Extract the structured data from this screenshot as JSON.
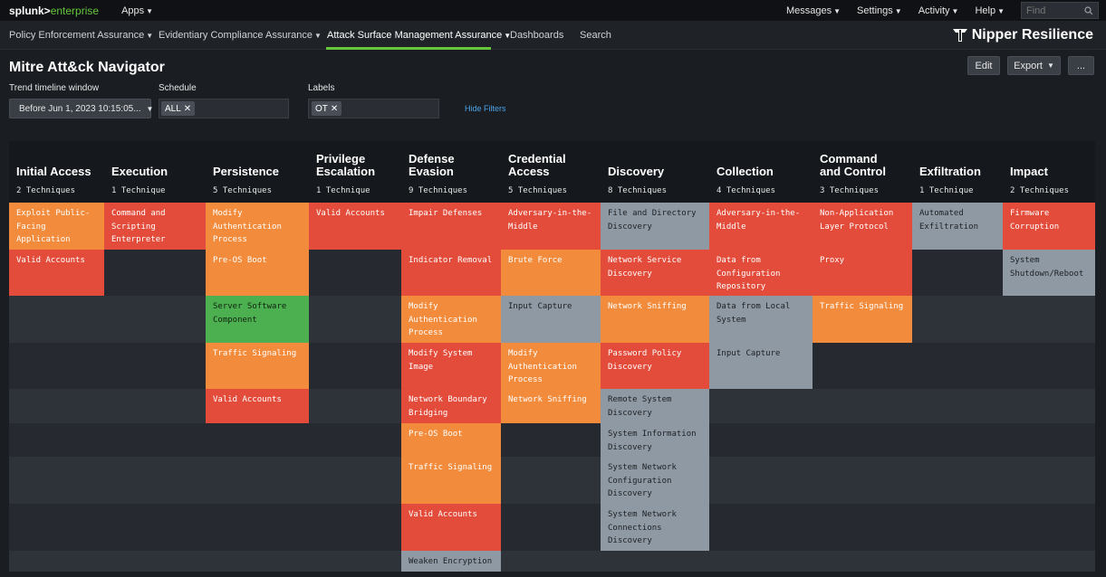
{
  "topbar": {
    "logo_main": "splunk>",
    "logo_sub": "enterprise",
    "apps": "Apps",
    "nav": [
      "Messages",
      "Settings",
      "Activity",
      "Help"
    ],
    "find_placeholder": "Find"
  },
  "appbar": {
    "nav": [
      "Policy Enforcement Assurance",
      "Evidentiary Compliance Assurance",
      "Attack Surface Management Assurance",
      "Dashboards",
      "Search"
    ],
    "brand": "Nipper Resilience"
  },
  "page": {
    "title": "Mitre Att&ck Navigator",
    "edit": "Edit",
    "export": "Export",
    "more": "..."
  },
  "filters": {
    "trend_label": "Trend timeline window",
    "trend_value": "Before Jun 1, 2023 10:15:05...",
    "schedule_label": "Schedule",
    "schedule_chip": "ALL",
    "labels_label": "Labels",
    "labels_chip": "OT",
    "hide_filters": "Hide Filters"
  },
  "colors": {
    "red": "#e34c3b",
    "orange": "#f28c3c",
    "gray": "#8f99a3",
    "green": "#4caf50",
    "accent": "#65c63b"
  },
  "tactics": [
    {
      "name": "Initial Access",
      "count": "2 Techniques"
    },
    {
      "name": "Execution",
      "count": "1 Technique"
    },
    {
      "name": "Persistence",
      "count": "5 Techniques"
    },
    {
      "name": "Privilege\nEscalation",
      "count": "1 Technique"
    },
    {
      "name": "Defense\nEvasion",
      "count": "9 Techniques"
    },
    {
      "name": "Credential\nAccess",
      "count": "5 Techniques"
    },
    {
      "name": "Discovery",
      "count": "8 Techniques"
    },
    {
      "name": "Collection",
      "count": "4 Techniques"
    },
    {
      "name": "Command\nand Control",
      "count": "3 Techniques"
    },
    {
      "name": "Exfiltration",
      "count": "1 Technique"
    },
    {
      "name": "Impact",
      "count": "2 Techniques"
    }
  ],
  "techniques": [
    [
      {
        "label": "Exploit Public-\nFacing\nApplication",
        "color": "orange"
      },
      {
        "label": "Valid Accounts",
        "color": "red"
      }
    ],
    [
      {
        "label": "Command and\nScripting\nEnterpreter",
        "color": "red"
      }
    ],
    [
      {
        "label": "Modify\nAuthentication\nProcess",
        "color": "orange"
      },
      {
        "label": "Pre-OS Boot",
        "color": "orange"
      },
      {
        "label": "Server Software\nComponent",
        "color": "green"
      },
      {
        "label": "Traffic Signaling",
        "color": "orange"
      },
      {
        "label": "Valid Accounts",
        "color": "red"
      }
    ],
    [
      {
        "label": "Valid Accounts",
        "color": "red"
      }
    ],
    [
      {
        "label": "Impair Defenses",
        "color": "red"
      },
      {
        "label": "Indicator Removal",
        "color": "red"
      },
      {
        "label": "Modify\nAuthentication\nProcess",
        "color": "orange"
      },
      {
        "label": "Modify System\nImage",
        "color": "red"
      },
      {
        "label": "Network Boundary\nBridging",
        "color": "red"
      },
      {
        "label": "Pre-OS Boot",
        "color": "orange"
      },
      {
        "label": "Traffic Signaling",
        "color": "orange"
      },
      {
        "label": "Valid Accounts",
        "color": "red"
      },
      {
        "label": "Weaken Encryption",
        "color": "gray"
      }
    ],
    [
      {
        "label": "Adversary-in-the-\nMiddle",
        "color": "red"
      },
      {
        "label": "Brute Force",
        "color": "orange"
      },
      {
        "label": "Input Capture",
        "color": "gray"
      },
      {
        "label": "Modify\nAuthentication\nProcess",
        "color": "orange"
      },
      {
        "label": "Network Sniffing",
        "color": "orange"
      }
    ],
    [
      {
        "label": "File and Directory\nDiscovery",
        "color": "gray"
      },
      {
        "label": "Network Service\nDiscovery",
        "color": "red"
      },
      {
        "label": "Network Sniffing",
        "color": "orange"
      },
      {
        "label": "Password Policy\nDiscovery",
        "color": "red"
      },
      {
        "label": "Remote System\nDiscovery",
        "color": "gray"
      },
      {
        "label": "System Information\nDiscovery",
        "color": "gray"
      },
      {
        "label": "System Network\nConfiguration\nDiscovery",
        "color": "gray"
      },
      {
        "label": "System Network\nConnections\nDiscovery",
        "color": "gray"
      }
    ],
    [
      {
        "label": "Adversary-in-the-\nMiddle",
        "color": "red"
      },
      {
        "label": "Data from\nConfiguration\nRepository",
        "color": "red"
      },
      {
        "label": "Data from Local\nSystem",
        "color": "gray"
      },
      {
        "label": "Input Capture",
        "color": "gray"
      }
    ],
    [
      {
        "label": "Non-Application\nLayer Protocol",
        "color": "red"
      },
      {
        "label": "Proxy",
        "color": "red"
      },
      {
        "label": "Traffic Signaling",
        "color": "orange"
      }
    ],
    [
      {
        "label": "Automated\nExfiltration",
        "color": "gray"
      }
    ],
    [
      {
        "label": "Firmware\nCorruption",
        "color": "red"
      },
      {
        "label": "System\nShutdown/Reboot",
        "color": "gray"
      }
    ]
  ]
}
